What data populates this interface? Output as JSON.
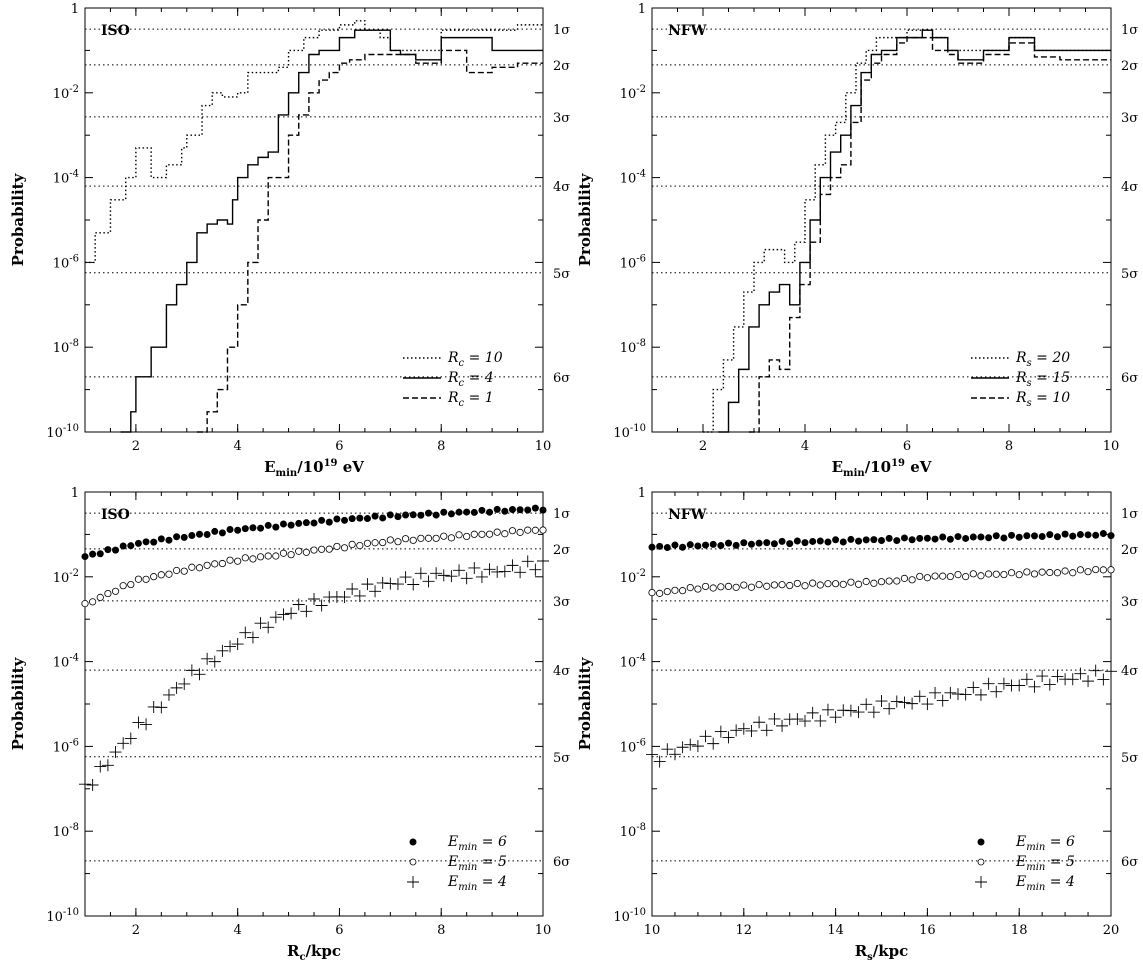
{
  "figure": {
    "sigma_labels": [
      "1σ",
      "2σ",
      "3σ",
      "4σ",
      "5σ",
      "6σ"
    ],
    "sigma_levels": [
      0.3173,
      0.0455,
      0.0027,
      6.3e-05,
      5.7e-07,
      2e-09
    ]
  },
  "chart_data": [
    {
      "type": "line",
      "panel_label": "ISO",
      "xlabel": "E_min/10^19 eV",
      "ylabel": "Probability",
      "xlim": [
        1,
        10
      ],
      "ylim": [
        1e-10,
        1
      ],
      "yscale": "log",
      "xticks": [
        "2",
        "4",
        "6",
        "8",
        "10"
      ],
      "yticks": [
        "1",
        "10^-2",
        "10^-4",
        "10^-6",
        "10^-8",
        "10^-10"
      ],
      "legend_position": "bottom-right",
      "series": [
        {
          "name": "R_c = 10",
          "style": "dotted",
          "x": [
            1.0,
            1.2,
            1.5,
            1.8,
            2.0,
            2.3,
            2.6,
            2.9,
            3.0,
            3.3,
            3.5,
            3.7,
            4.0,
            4.2,
            4.5,
            4.8,
            5.0,
            5.3,
            5.6,
            6.0,
            6.3,
            6.5,
            6.8,
            7.0,
            7.5,
            8.0,
            8.5,
            9.0,
            9.5,
            10.0
          ],
          "y": [
            1e-06,
            5e-06,
            3e-05,
            0.0001,
            0.0005,
            0.0001,
            0.0002,
            0.0005,
            0.001,
            0.005,
            0.01,
            0.008,
            0.01,
            0.03,
            0.03,
            0.04,
            0.1,
            0.2,
            0.3,
            0.4,
            0.5,
            0.3,
            0.2,
            0.1,
            0.1,
            0.3,
            0.3,
            0.3,
            0.4,
            0.4
          ]
        },
        {
          "name": "R_c = 4",
          "style": "solid",
          "x": [
            1.7,
            1.9,
            2.0,
            2.3,
            2.6,
            2.8,
            3.0,
            3.2,
            3.4,
            3.6,
            3.8,
            3.9,
            4.0,
            4.2,
            4.4,
            4.6,
            4.8,
            5.0,
            5.2,
            5.4,
            5.6,
            5.8,
            6.0,
            6.3,
            6.5,
            7.0,
            7.2,
            7.5,
            8.0,
            8.5,
            9.0,
            9.5,
            10.0
          ],
          "y": [
            1e-10,
            3e-10,
            2e-09,
            1e-08,
            1e-07,
            3e-07,
            1e-06,
            5e-06,
            8e-06,
            1e-05,
            8e-06,
            3e-05,
            0.0001,
            0.0002,
            0.0003,
            0.0004,
            0.003,
            0.01,
            0.03,
            0.08,
            0.1,
            0.1,
            0.2,
            0.3,
            0.3,
            0.1,
            0.08,
            0.06,
            0.2,
            0.2,
            0.1,
            0.1,
            0.1
          ]
        },
        {
          "name": "R_c = 1",
          "style": "dashed",
          "x": [
            3.2,
            3.4,
            3.6,
            3.8,
            4.0,
            4.2,
            4.4,
            4.6,
            4.8,
            5.0,
            5.2,
            5.4,
            5.6,
            5.8,
            6.0,
            6.2,
            6.5,
            7.0,
            7.5,
            8.0,
            8.5,
            9.0,
            9.5,
            10.0
          ],
          "y": [
            1e-10,
            3e-10,
            1e-09,
            1e-08,
            1e-07,
            1e-06,
            1e-05,
            0.0001,
            0.0001,
            0.001,
            0.003,
            0.01,
            0.02,
            0.03,
            0.05,
            0.06,
            0.08,
            0.08,
            0.05,
            0.1,
            0.03,
            0.04,
            0.05,
            0.05
          ]
        }
      ]
    },
    {
      "type": "line",
      "panel_label": "NFW",
      "xlabel": "E_min/10^19 eV",
      "ylabel": "Probability",
      "xlim": [
        1,
        10
      ],
      "ylim": [
        1e-10,
        1
      ],
      "yscale": "log",
      "xticks": [
        "2",
        "4",
        "6",
        "8",
        "10"
      ],
      "yticks": [
        "1",
        "10^-2",
        "10^-4",
        "10^-6",
        "10^-8",
        "10^-10"
      ],
      "legend_position": "bottom-right",
      "series": [
        {
          "name": "R_s = 20",
          "style": "dotted",
          "x": [
            2.0,
            2.2,
            2.4,
            2.6,
            2.8,
            3.0,
            3.2,
            3.4,
            3.6,
            3.8,
            4.0,
            4.2,
            4.4,
            4.6,
            4.8,
            5.0,
            5.2,
            5.4,
            5.6,
            5.8,
            6.0,
            6.3,
            6.5,
            6.8,
            7.0,
            7.5,
            8.0,
            8.5,
            9.0,
            9.5,
            10.0
          ],
          "y": [
            1e-10,
            1e-09,
            5e-09,
            3e-08,
            2e-07,
            1e-06,
            2e-06,
            2e-06,
            1e-06,
            3e-06,
            3e-05,
            0.0002,
            0.001,
            0.002,
            0.01,
            0.05,
            0.1,
            0.2,
            0.2,
            0.2,
            0.3,
            0.3,
            0.2,
            0.1,
            0.1,
            0.1,
            0.2,
            0.1,
            0.1,
            0.1,
            0.1
          ]
        },
        {
          "name": "R_s = 15",
          "style": "solid",
          "x": [
            2.3,
            2.5,
            2.7,
            2.9,
            3.1,
            3.3,
            3.5,
            3.7,
            3.9,
            4.1,
            4.3,
            4.5,
            4.7,
            4.9,
            5.1,
            5.3,
            5.5,
            5.8,
            6.0,
            6.3,
            6.5,
            6.8,
            7.0,
            7.5,
            8.0,
            8.5,
            9.0,
            9.5,
            10.0
          ],
          "y": [
            1e-10,
            5e-10,
            3e-09,
            3e-08,
            1e-07,
            2e-07,
            3e-07,
            1e-07,
            1e-06,
            1e-05,
            0.0001,
            0.0004,
            0.001,
            0.005,
            0.03,
            0.08,
            0.1,
            0.2,
            0.2,
            0.3,
            0.2,
            0.1,
            0.06,
            0.1,
            0.2,
            0.1,
            0.1,
            0.1,
            0.1
          ]
        },
        {
          "name": "R_s = 10",
          "style": "dashed",
          "x": [
            2.9,
            3.1,
            3.3,
            3.5,
            3.7,
            3.9,
            4.1,
            4.3,
            4.5,
            4.7,
            4.9,
            5.1,
            5.3,
            5.5,
            5.8,
            6.0,
            6.3,
            6.5,
            6.8,
            7.0,
            7.5,
            8.0,
            8.5,
            9.0,
            9.5,
            10.0
          ],
          "y": [
            1e-10,
            2e-09,
            5e-09,
            3e-09,
            5e-08,
            3e-07,
            3e-06,
            4e-05,
            0.0001,
            0.0002,
            0.002,
            0.02,
            0.05,
            0.08,
            0.15,
            0.2,
            0.2,
            0.1,
            0.08,
            0.05,
            0.08,
            0.15,
            0.07,
            0.06,
            0.06,
            0.06
          ]
        }
      ]
    },
    {
      "type": "scatter",
      "panel_label": "ISO",
      "xlabel": "R_c/kpc",
      "ylabel": "Probability",
      "xlim": [
        1,
        10
      ],
      "ylim": [
        1e-10,
        1
      ],
      "yscale": "log",
      "xticks": [
        "2",
        "4",
        "6",
        "8",
        "10"
      ],
      "yticks": [
        "1",
        "10^-2",
        "10^-4",
        "10^-6",
        "10^-8",
        "10^-10"
      ],
      "legend_position": "bottom-right",
      "series": [
        {
          "name": "E_min = 6",
          "marker": "filled-circle",
          "x": [
            1,
            2,
            3,
            4,
            5,
            6,
            7,
            8,
            9,
            10
          ],
          "y": [
            0.03,
            0.06,
            0.09,
            0.13,
            0.17,
            0.22,
            0.27,
            0.31,
            0.36,
            0.4
          ]
        },
        {
          "name": "E_min = 5",
          "marker": "open-circle",
          "x": [
            1,
            2,
            3,
            4,
            5,
            6,
            7,
            8,
            9,
            10
          ],
          "y": [
            0.0022,
            0.008,
            0.015,
            0.025,
            0.035,
            0.05,
            0.07,
            0.085,
            0.105,
            0.13
          ]
        },
        {
          "name": "E_min = 4",
          "marker": "plus",
          "x": [
            1,
            2,
            3,
            4,
            5,
            6,
            7,
            8,
            9,
            10
          ],
          "y": [
            1e-07,
            2.5e-06,
            4e-05,
            0.0003,
            0.0015,
            0.0035,
            0.007,
            0.011,
            0.013,
            0.02
          ]
        }
      ]
    },
    {
      "type": "scatter",
      "panel_label": "NFW",
      "xlabel": "R_s/kpc",
      "ylabel": "Probability",
      "xlim": [
        10,
        20
      ],
      "ylim": [
        1e-10,
        1
      ],
      "yscale": "log",
      "xticks": [
        "10",
        "12",
        "14",
        "16",
        "18",
        "20"
      ],
      "yticks": [
        "1",
        "10^-2",
        "10^-4",
        "10^-6",
        "10^-8",
        "10^-10"
      ],
      "legend_position": "bottom-right",
      "series": [
        {
          "name": "E_min = 6",
          "marker": "filled-circle",
          "x": [
            10,
            11,
            12,
            13,
            14,
            15,
            16,
            17,
            18,
            19,
            20
          ],
          "y": [
            0.05,
            0.055,
            0.06,
            0.065,
            0.07,
            0.075,
            0.08,
            0.085,
            0.09,
            0.095,
            0.1
          ]
        },
        {
          "name": "E_min = 5",
          "marker": "open-circle",
          "x": [
            10,
            11,
            12,
            13,
            14,
            15,
            16,
            17,
            18,
            19,
            20
          ],
          "y": [
            0.004,
            0.0055,
            0.006,
            0.0065,
            0.0068,
            0.0075,
            0.01,
            0.011,
            0.012,
            0.013,
            0.015
          ]
        },
        {
          "name": "E_min = 4",
          "marker": "plus",
          "x": [
            10,
            11,
            12,
            13,
            14,
            15,
            16,
            17,
            18,
            19,
            20
          ],
          "y": [
            5e-07,
            1.2e-06,
            2.5e-06,
            4e-06,
            6e-06,
            9e-06,
            1.3e-05,
            2e-05,
            3e-05,
            4e-05,
            5e-05
          ]
        }
      ]
    }
  ]
}
